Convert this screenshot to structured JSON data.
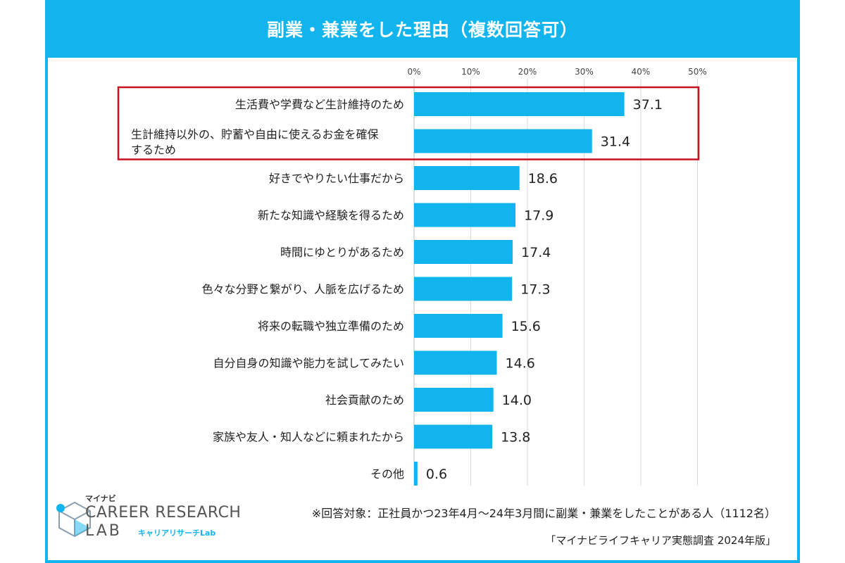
{
  "title": "副業・兼業をした理由（複数回答可）",
  "chart_data": {
    "type": "bar",
    "orientation": "horizontal",
    "title": "副業・兼業をした理由（複数回答可）",
    "x_ticks": [
      "0%",
      "10%",
      "20%",
      "30%",
      "40%",
      "50%"
    ],
    "xlim": [
      0,
      50
    ],
    "grid": true,
    "highlighted_categories": [
      0,
      1
    ],
    "highlight_color": "#c8101e",
    "bar_color": "#12b4ee",
    "categories": [
      [
        "生活費や学費など生計維持のため"
      ],
      [
        "生計維持以外の、貯蓄や自由に使えるお金を確保",
        "するため"
      ],
      [
        "好きでやりたい仕事だから"
      ],
      [
        "新たな知識や経験を得るため"
      ],
      [
        "時間にゆとりがあるため"
      ],
      [
        "色々な分野と繋がり、人脈を広げるため"
      ],
      [
        "将来の転職や独立準備のため"
      ],
      [
        "自分自身の知識や能力を試してみたい"
      ],
      [
        "社会貢献のため"
      ],
      [
        "家族や友人・知人などに頼まれたから"
      ],
      [
        "その他"
      ]
    ],
    "values": [
      37.1,
      31.4,
      18.6,
      17.9,
      17.4,
      17.3,
      15.6,
      14.6,
      14.0,
      13.8,
      0.6
    ],
    "value_labels": [
      "37.1",
      "31.4",
      "18.6",
      "17.9",
      "17.4",
      "17.3",
      "15.6",
      "14.6",
      "14.0",
      "13.8",
      "0.6"
    ]
  },
  "logo": {
    "brand_small": "マイナビ",
    "line1": "CAREER RESEARCH",
    "line2": "LAB",
    "line2_sub": "キャリアリサーチLab"
  },
  "note": "※回答対象：正社員かつ23年4月～24年3月間に副業・兼業をしたことがある人（1112名）",
  "source": "「マイナビライフキャリア実態調査  2024年版」",
  "colors": {
    "accent": "#12b4ee",
    "highlight": "#c8101e",
    "text": "#222222",
    "grid": "#d9d9d9"
  }
}
